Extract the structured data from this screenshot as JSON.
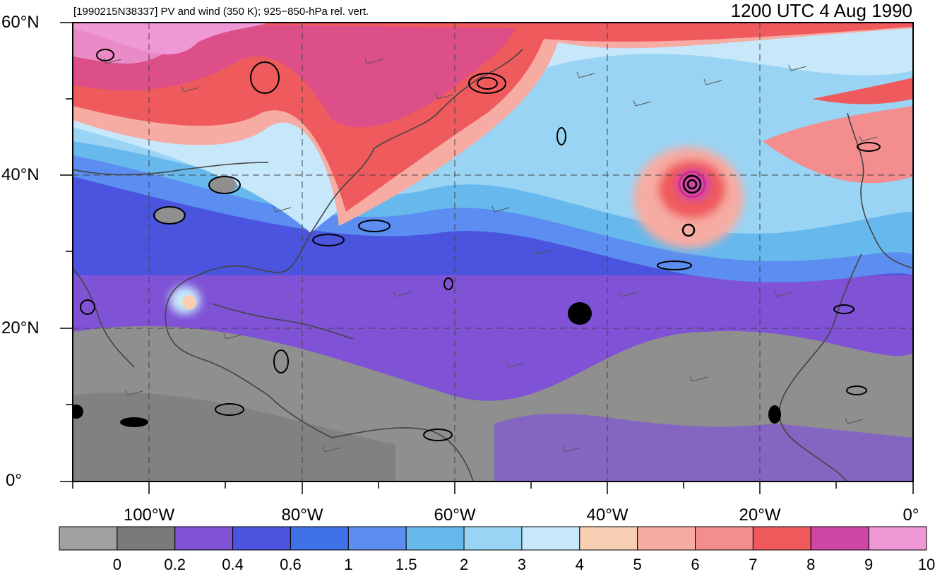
{
  "title": "1200 UTC 4 Aug 1990",
  "subtitle": "[1990215N38337] PV and wind (350 K); 925−850-hPa rel. vert.",
  "lat_labels": [
    "60°N",
    "40°N",
    "20°N",
    "0°"
  ],
  "lon_labels": [
    "100°W",
    "80°W",
    "60°W",
    "40°W",
    "20°W",
    "0°"
  ],
  "colorbar": {
    "ticks": [
      "0",
      "0.2",
      "0.4",
      "0.6",
      "1",
      "1.5",
      "2",
      "3",
      "4",
      "5",
      "6",
      "7",
      "8",
      "9",
      "10"
    ],
    "colors": [
      "#a0a0a0",
      "#7a7a7a",
      "#7f52d6",
      "#4b54de",
      "#3f72e6",
      "#5b8ef0",
      "#67b8ec",
      "#9ad4f4",
      "#c6e8fa",
      "#f9cfb4",
      "#f7aca3",
      "#f38d8e",
      "#ef5a5c",
      "#ce47a7",
      "#ee98d6"
    ]
  },
  "map": {
    "extent": {
      "lon_min": -110,
      "lon_max": 0,
      "lat_min": 0,
      "lat_max": 60
    },
    "storm_center": {
      "lon": -29,
      "lat": 38.5
    }
  }
}
